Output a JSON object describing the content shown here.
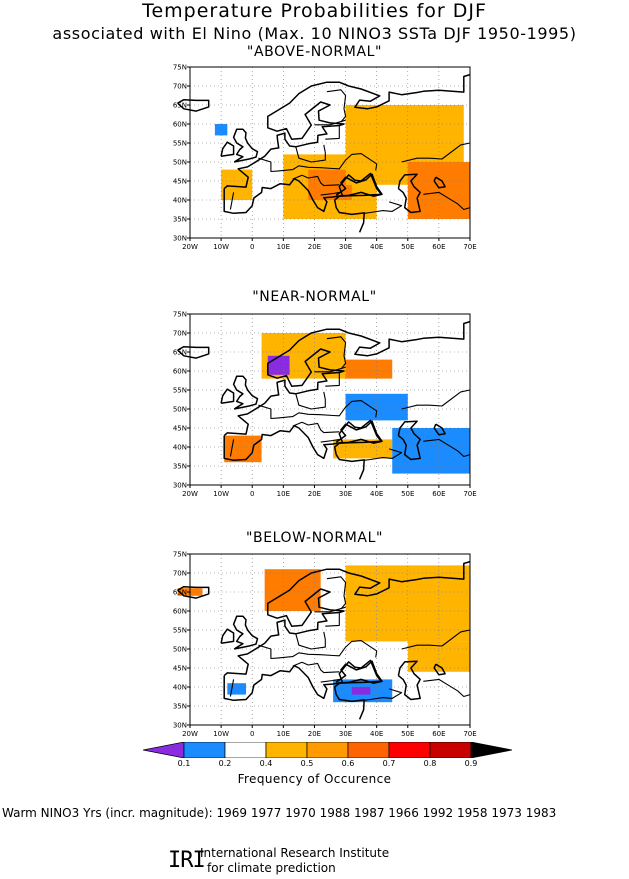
{
  "header": {
    "title": "Temperature Probabilities for DJF",
    "subtitle": "associated with El Nino (Max. 10 NINO3 SSTa DJF 1950-1995)"
  },
  "axes": {
    "lat_labels": [
      "30N",
      "35N",
      "40N",
      "45N",
      "50N",
      "55N",
      "60N",
      "65N",
      "70N",
      "75N"
    ],
    "lon_labels": [
      "20W",
      "10W",
      "0",
      "10E",
      "20E",
      "30E",
      "40E",
      "50E",
      "60E",
      "70E"
    ]
  },
  "maps": [
    {
      "label": "\"ABOVE-NORMAL\"",
      "shading": [
        {
          "name": "europe-east",
          "lon": [
            10,
            40
          ],
          "lat": [
            35,
            52
          ],
          "level": 0.5,
          "color": "#ffb400"
        },
        {
          "name": "balkans-core",
          "lon": [
            18,
            32
          ],
          "lat": [
            40,
            48
          ],
          "level": 0.6,
          "color": "#ff7c00"
        },
        {
          "name": "russia-north",
          "lon": [
            30,
            68
          ],
          "lat": [
            44,
            65
          ],
          "level": 0.5,
          "color": "#ffb400"
        },
        {
          "name": "central-asia",
          "lon": [
            50,
            70
          ],
          "lat": [
            35,
            50
          ],
          "level": 0.6,
          "color": "#ff7c00"
        },
        {
          "name": "iberia-north",
          "lon": [
            -10,
            0
          ],
          "lat": [
            40,
            48
          ],
          "level": 0.5,
          "color": "#ffb400"
        },
        {
          "name": "scandinavia-blue",
          "lon": [
            -12,
            -8
          ],
          "lat": [
            57,
            60
          ],
          "level": 0.2,
          "color": "#1a8cff"
        }
      ]
    },
    {
      "label": "\"NEAR-NORMAL\"",
      "shading": [
        {
          "name": "scandinavia",
          "lon": [
            3,
            30
          ],
          "lat": [
            58,
            70
          ],
          "level": 0.5,
          "color": "#ffb400"
        },
        {
          "name": "scandinavia-purple",
          "lon": [
            5,
            12
          ],
          "lat": [
            59,
            64
          ],
          "level": 0.1,
          "color": "#8a2be2"
        },
        {
          "name": "russia-west",
          "lon": [
            30,
            45
          ],
          "lat": [
            58,
            63
          ],
          "level": 0.6,
          "color": "#ff7c00"
        },
        {
          "name": "iberia",
          "lon": [
            -9,
            3
          ],
          "lat": [
            36,
            43
          ],
          "level": 0.6,
          "color": "#ff7c00"
        },
        {
          "name": "anatolia",
          "lon": [
            26,
            45
          ],
          "lat": [
            37,
            42
          ],
          "level": 0.5,
          "color": "#ffb400"
        },
        {
          "name": "east-blue",
          "lon": [
            45,
            70
          ],
          "lat": [
            33,
            45
          ],
          "level": 0.2,
          "color": "#1a8cff"
        },
        {
          "name": "ukraine-blue",
          "lon": [
            30,
            50
          ],
          "lat": [
            47,
            54
          ],
          "level": 0.2,
          "color": "#1a8cff"
        }
      ]
    },
    {
      "label": "\"BELOW-NORMAL\"",
      "shading": [
        {
          "name": "norway",
          "lon": [
            4,
            22
          ],
          "lat": [
            60,
            71
          ],
          "level": 0.6,
          "color": "#ff7c00"
        },
        {
          "name": "russia-north",
          "lon": [
            30,
            70
          ],
          "lat": [
            52,
            72
          ],
          "level": 0.5,
          "color": "#ffb400"
        },
        {
          "name": "central-asia",
          "lon": [
            50,
            70
          ],
          "lat": [
            44,
            52
          ],
          "level": 0.5,
          "color": "#ffb400"
        },
        {
          "name": "iceland",
          "lon": [
            -24,
            -16
          ],
          "lat": [
            64,
            66
          ],
          "level": 0.6,
          "color": "#ff7c00"
        },
        {
          "name": "turkey-blue",
          "lon": [
            26,
            45
          ],
          "lat": [
            36,
            42
          ],
          "level": 0.2,
          "color": "#1a8cff"
        },
        {
          "name": "turkey-purple",
          "lon": [
            32,
            38
          ],
          "lat": [
            38,
            40
          ],
          "level": 0.1,
          "color": "#8a2be2"
        },
        {
          "name": "iberia-blue",
          "lon": [
            -8,
            -2
          ],
          "lat": [
            38,
            41
          ],
          "level": 0.2,
          "color": "#1a8cff"
        }
      ]
    }
  ],
  "colorbar": {
    "title": "Frequency of Occurence",
    "ticks": [
      "0.1",
      "0.2",
      "0.4",
      "0.5",
      "0.6",
      "0.7",
      "0.8",
      "0.9"
    ],
    "colors": [
      "#8a2be2",
      "#1a8cff",
      "#ffffff",
      "#ffb400",
      "#ff9a00",
      "#ff6400",
      "#ff0000",
      "#c80000",
      "#000000"
    ]
  },
  "footer": {
    "years_line": "Warm NINO3 Yrs (incr. magnitude): 1969 1977 1970 1988 1987 1966 1992 1958 1973 1983",
    "logo": "IRI",
    "institute_line1": "International Research Institute",
    "institute_line2": "for climate prediction"
  }
}
